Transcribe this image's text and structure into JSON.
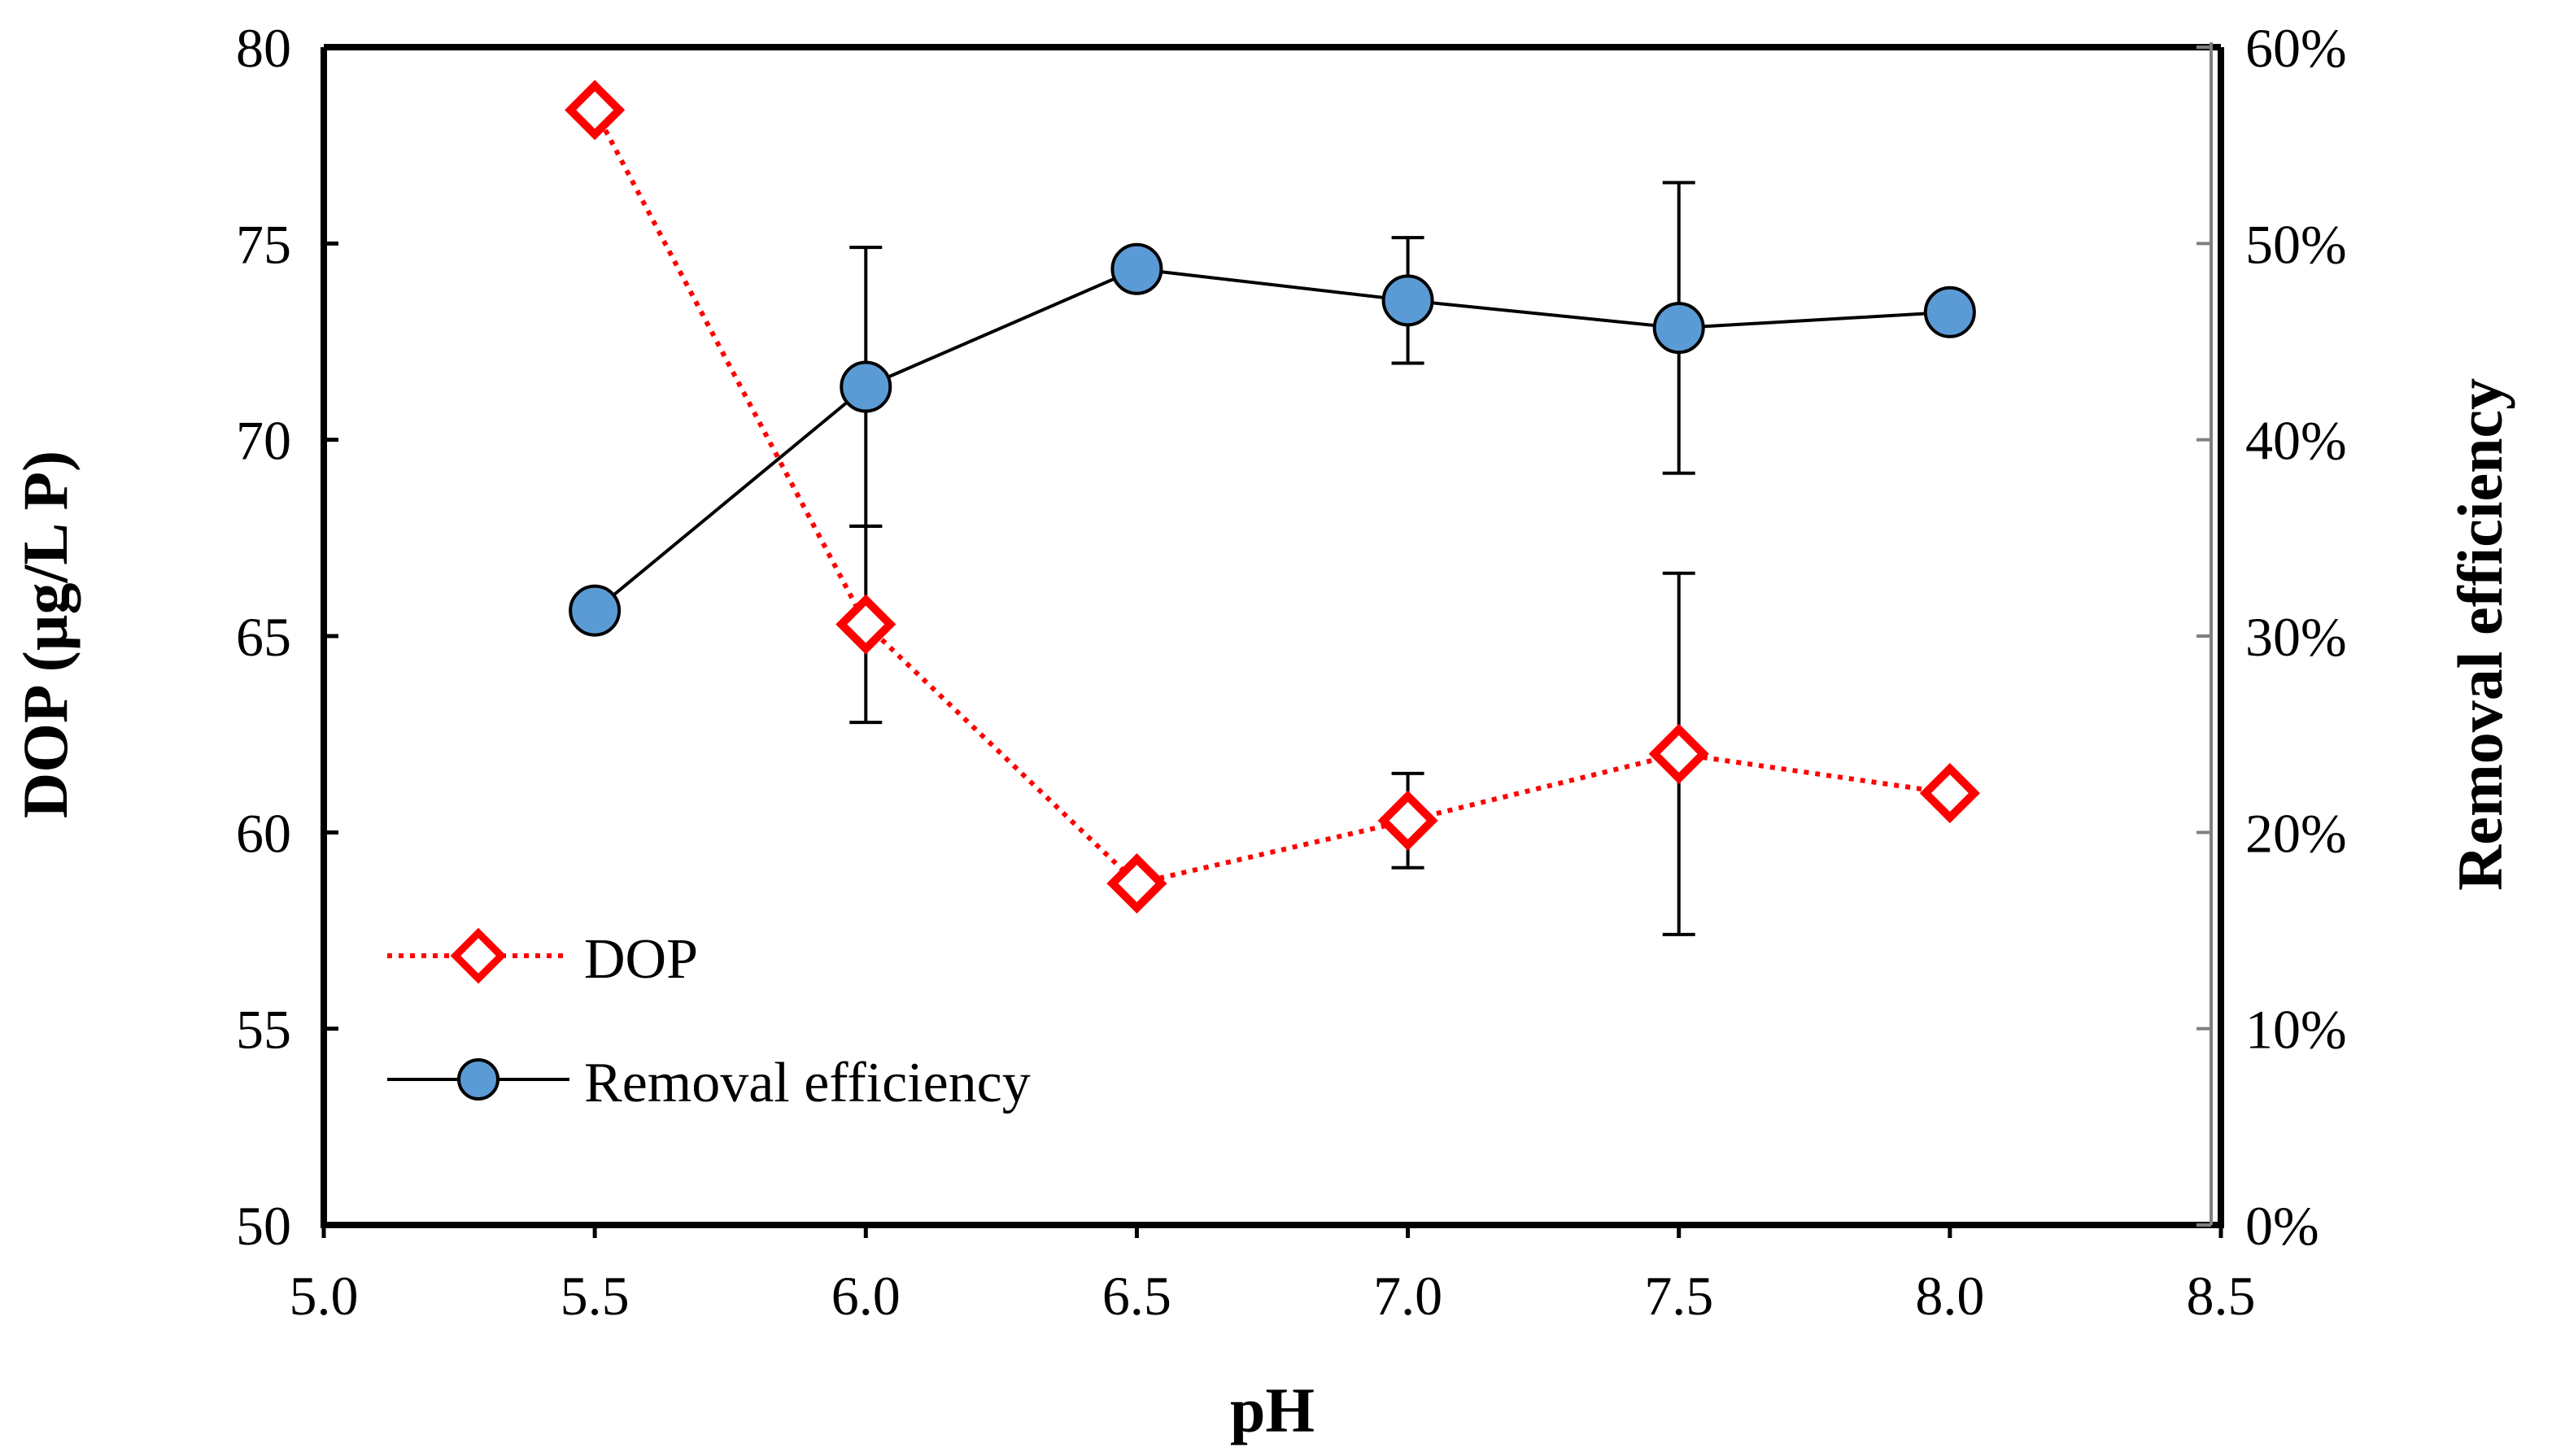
{
  "chart_data": {
    "type": "line",
    "x": [
      5.5,
      6.0,
      6.5,
      7.0,
      7.5,
      8.0
    ],
    "xlabel": "pH",
    "xlim": [
      5.0,
      8.5
    ],
    "xticks": [
      "5.0",
      "5.5",
      "6.0",
      "6.5",
      "7.0",
      "7.5",
      "8.0",
      "8.5"
    ],
    "ylabel_left": "DOP (µg/L P)",
    "ylim_left": [
      50,
      80
    ],
    "yticks_left": [
      "50",
      "55",
      "60",
      "65",
      "70",
      "75",
      "80"
    ],
    "ylabel_right": "Removal efficiency",
    "ylim_right": [
      0,
      0.6
    ],
    "yticks_right": [
      "0%",
      "10%",
      "20%",
      "30%",
      "40%",
      "50%",
      "60%"
    ],
    "grid": false,
    "legend_position": "bottom-left",
    "series": [
      {
        "name": "DOP",
        "axis": "left",
        "color": "#ff0000",
        "line_style": "dotted",
        "marker": "diamond-open",
        "values": [
          78.4,
          65.3,
          58.7,
          60.3,
          62.0,
          61.0
        ],
        "error": [
          0.0,
          2.5,
          0.0,
          1.2,
          4.6,
          0.0
        ]
      },
      {
        "name": "Removal efficiency",
        "axis": "right",
        "color": "#000000",
        "marker_fill": "#5b9bd5",
        "line_style": "solid",
        "marker": "circle",
        "values": [
          0.313,
          0.427,
          0.487,
          0.471,
          0.457,
          0.465
        ],
        "error": [
          0.0,
          0.071,
          0.0,
          0.032,
          0.074,
          0.0
        ]
      }
    ]
  }
}
